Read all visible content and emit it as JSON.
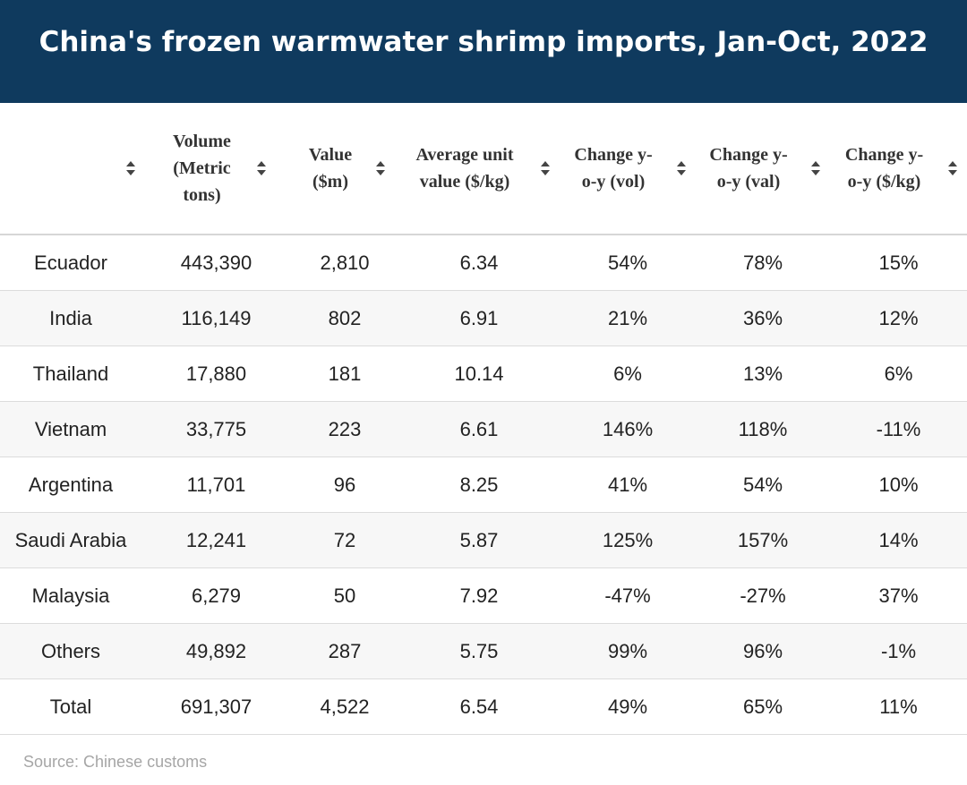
{
  "title": "China's frozen warmwater shrimp imports, Jan-Oct, 2022",
  "chart_data": {
    "type": "table",
    "columns": [
      {
        "label": "",
        "sort_icon": "sort-icon"
      },
      {
        "label_lines": [
          "Volume",
          "(Metric",
          "tons)"
        ],
        "sort_icon": "sort-icon"
      },
      {
        "label_lines": [
          "Value",
          "($m)"
        ],
        "sort_icon": "sort-icon"
      },
      {
        "label_lines": [
          "Average unit",
          "value ($/kg)"
        ],
        "sort_icon": "sort-icon"
      },
      {
        "label_lines": [
          "Change y-",
          "o-y (vol)"
        ],
        "sort_icon": "sort-icon"
      },
      {
        "label_lines": [
          "Change y-",
          "o-y (val)"
        ],
        "sort_icon": "sort-icon"
      },
      {
        "label_lines": [
          "Change y-",
          "o-y ($/kg)"
        ],
        "sort_icon": "sort-icon"
      }
    ],
    "rows": [
      [
        "Ecuador",
        "443,390",
        "2,810",
        "6.34",
        "54%",
        "78%",
        "15%"
      ],
      [
        "India",
        "116,149",
        "802",
        "6.91",
        "21%",
        "36%",
        "12%"
      ],
      [
        "Thailand",
        "17,880",
        "181",
        "10.14",
        "6%",
        "13%",
        "6%"
      ],
      [
        "Vietnam",
        "33,775",
        "223",
        "6.61",
        "146%",
        "118%",
        "-11%"
      ],
      [
        "Argentina",
        "11,701",
        "96",
        "8.25",
        "41%",
        "54%",
        "10%"
      ],
      [
        "Saudi Arabia",
        "12,241",
        "72",
        "5.87",
        "125%",
        "157%",
        "14%"
      ],
      [
        "Malaysia",
        "6,279",
        "50",
        "7.92",
        "-47%",
        "-27%",
        "37%"
      ],
      [
        "Others",
        "49,892",
        "287",
        "5.75",
        "99%",
        "96%",
        "-1%"
      ],
      [
        "Total",
        "691,307",
        "4,522",
        "6.54",
        "49%",
        "65%",
        "11%"
      ]
    ]
  },
  "source": "Source: Chinese customs",
  "colors": {
    "header_bg": "#0f3a5e",
    "header_text": "#ffffff",
    "stripe": "#f7f7f7",
    "source_text": "#a6a6a6"
  }
}
